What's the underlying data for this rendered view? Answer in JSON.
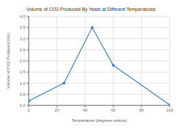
{
  "chart_data": {
    "type": "line",
    "title": "Volume of CO2 Produced By Yeast at Different Temperatures",
    "xlabel": "Temperature (degrees celsius)",
    "ylabel": "Volume of CO2 Produced (mL)",
    "x": [
      0,
      25,
      45,
      60,
      100
    ],
    "values": [
      0.2,
      1.0,
      3.5,
      1.8,
      0.02
    ],
    "color": "#3a7abf",
    "marker": "circle",
    "xlim": [
      0,
      100
    ],
    "ylim": [
      0,
      4
    ],
    "xticks": [
      0,
      20,
      40,
      60,
      80,
      100
    ],
    "yticks": [
      {
        "value": 0,
        "label": "0.0"
      },
      0.5,
      {
        "value": 1.0,
        "label": "1.0"
      },
      1.5,
      {
        "value": 2.0,
        "label": "2.0"
      },
      2.5,
      {
        "value": 3.0,
        "label": "3.0"
      },
      3.5,
      {
        "value": 4.0,
        "label": "4.0"
      }
    ],
    "grid": true
  }
}
